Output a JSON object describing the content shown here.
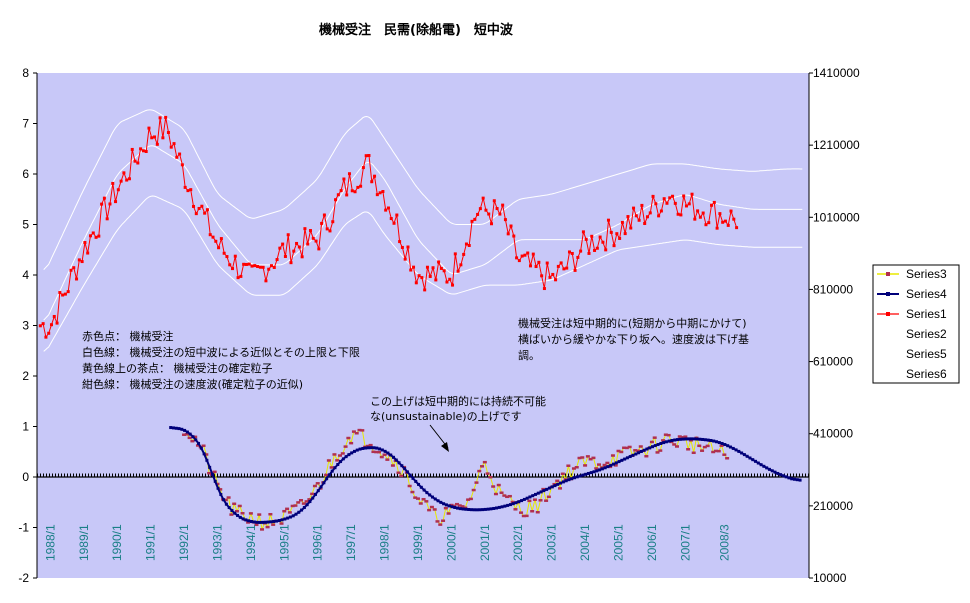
{
  "chart_data": {
    "type": "line",
    "title": "機械受注　民需(除船電)　短中波",
    "y_left": {
      "min": -2,
      "max": 8,
      "ticks": [
        "8",
        "7",
        "6",
        "5",
        "4",
        "3",
        "2",
        "1",
        "0",
        "-1",
        "-2"
      ]
    },
    "y_right": {
      "min": 10000,
      "max": 1410000,
      "ticks": [
        "1410000",
        "1210000",
        "1010000",
        "810000",
        "610000",
        "410000",
        "210000",
        "10000"
      ]
    },
    "x_range": [
      1987.6,
      2010.7
    ],
    "x_tick_labels": [
      "1988/1",
      "1989/1",
      "1990/1",
      "1991/1",
      "1992/1",
      "1993/1",
      "1994/1",
      "1995/1",
      "1996/1",
      "1997/1",
      "1998/1",
      "1999/1",
      "2000/1",
      "2001/1",
      "2002/1",
      "2003/1",
      "2004/1",
      "2005/1",
      "2006/1",
      "2007/1",
      "2008/3"
    ],
    "grid": false,
    "legend_position": "right",
    "legend": [
      "Series3",
      "Series4",
      "Series1",
      "Series2",
      "Series5",
      "Series6"
    ],
    "colors": {
      "plot_bg": "#c8c8f8",
      "series1": "#ff0000",
      "series1_marker": "#ff0000",
      "series3_line": "#e8e800",
      "series3_marker": "#b03050",
      "series4": "#00007a",
      "envelope": "#ffffff",
      "zero_line": "#000000"
    },
    "notes_left": [
      "赤色点：  機械受注",
      "白色線：  機械受注の短中波による近似とその上限と下限",
      "黄色線上の茶点：  機械受注の確定粒子",
      "紺色線：  機械受注の速度波(確定粒子の近似)"
    ],
    "notes_right": [
      "機械受注は短中期的に(短期から中期にかけて)",
      "横ばいから緩やかな下り坂へ。速度波は下げ基",
      "調。"
    ],
    "arrow_note": [
      "この上げは短中期的には持続不可能",
      "な(unsustainable)の上げです"
    ],
    "series": [
      {
        "name": "Series1",
        "axis": "left",
        "values_note": "monthly orders, trend approx",
        "x": [
          1988.0,
          1989.0,
          1990.0,
          1991.0,
          1991.5,
          1992.0,
          1993.0,
          1994.0,
          1995.0,
          1996.0,
          1996.8,
          1997.5,
          1998.0,
          1999.0,
          2000.0,
          2000.8,
          2001.5,
          2002.0,
          2003.0,
          2003.5,
          2004.0,
          2005.0,
          2006.0,
          2006.5,
          2007.0,
          2008.0,
          2008.5
        ],
        "y": [
          3.0,
          4.5,
          5.7,
          6.8,
          6.9,
          6.0,
          4.6,
          3.9,
          4.5,
          4.7,
          5.7,
          6.2,
          5.6,
          4.0,
          4.0,
          5.3,
          5.2,
          4.3,
          3.9,
          4.2,
          4.6,
          4.9,
          5.3,
          5.6,
          5.4,
          5.2,
          5.1
        ]
      },
      {
        "name": "Series2",
        "axis": "left",
        "role": "approximation",
        "x": [
          1987.8,
          1989.0,
          1990.0,
          1991.0,
          1992.0,
          1993.0,
          1994.0,
          1995.0,
          1996.0,
          1996.8,
          1997.5,
          1998.0,
          1999.0,
          2000.0,
          2001.0,
          2002.0,
          2003.0,
          2004.0,
          2005.0,
          2006.0,
          2007.0,
          2008.0,
          2009.0,
          2010.0,
          2010.5
        ],
        "y": [
          3.0,
          4.7,
          6.0,
          6.6,
          6.2,
          5.0,
          4.2,
          4.2,
          4.8,
          5.7,
          6.3,
          5.9,
          4.7,
          4.0,
          4.2,
          4.7,
          4.7,
          4.7,
          5.0,
          5.4,
          5.6,
          5.4,
          5.3,
          5.3,
          5.3
        ]
      },
      {
        "name": "Series5",
        "axis": "left",
        "role": "upper band",
        "x": [
          1987.8,
          1989.0,
          1990.0,
          1991.0,
          1992.0,
          1993.0,
          1994.0,
          1995.0,
          1996.0,
          1996.8,
          1997.5,
          1998.0,
          1999.0,
          2000.0,
          2001.0,
          2002.0,
          2003.0,
          2004.0,
          2005.0,
          2006.0,
          2007.0,
          2008.0,
          2009.0,
          2010.0,
          2010.5
        ],
        "y": [
          4.0,
          5.7,
          7.0,
          7.3,
          6.9,
          5.6,
          5.1,
          5.3,
          5.9,
          6.8,
          7.2,
          6.7,
          5.7,
          5.0,
          5.0,
          5.5,
          5.6,
          5.8,
          6.0,
          6.2,
          6.2,
          6.1,
          6.05,
          6.1,
          6.1
        ]
      },
      {
        "name": "Series6",
        "axis": "left",
        "role": "lower band",
        "x": [
          1987.8,
          1989.0,
          1990.0,
          1991.0,
          1992.0,
          1993.0,
          1994.0,
          1995.0,
          1996.0,
          1996.8,
          1997.5,
          1998.0,
          1999.0,
          2000.0,
          2001.0,
          2002.0,
          2003.0,
          2004.0,
          2005.0,
          2006.0,
          2007.0,
          2008.0,
          2009.0,
          2010.0,
          2010.5
        ],
        "y": [
          2.4,
          3.8,
          4.9,
          5.6,
          5.3,
          4.2,
          3.6,
          3.6,
          4.2,
          5.0,
          5.3,
          4.8,
          4.0,
          3.6,
          3.8,
          3.8,
          3.9,
          4.2,
          4.5,
          4.6,
          4.7,
          4.6,
          4.55,
          4.55,
          4.55
        ]
      },
      {
        "name": "Series4",
        "axis": "left",
        "role": "velocity wave",
        "x": [
          1991.6,
          1992.2,
          1992.7,
          1993.0,
          1993.5,
          1994.0,
          1994.5,
          1995.0,
          1995.5,
          1996.0,
          1996.5,
          1997.0,
          1997.5,
          1998.0,
          1998.5,
          1999.0,
          1999.5,
          2000.0,
          2000.5,
          2001.0,
          2001.5,
          2002.0,
          2002.5,
          2003.0,
          2003.5,
          2004.0,
          2004.5,
          2005.0,
          2005.5,
          2006.0,
          2006.5,
          2007.0,
          2007.5,
          2008.0,
          2008.5,
          2009.0,
          2009.5,
          2010.0,
          2010.5
        ],
        "y": [
          1.0,
          0.9,
          0.4,
          -0.3,
          -0.75,
          -0.9,
          -0.9,
          -0.85,
          -0.7,
          -0.3,
          0.2,
          0.5,
          0.6,
          0.55,
          0.25,
          -0.15,
          -0.45,
          -0.6,
          -0.65,
          -0.65,
          -0.6,
          -0.5,
          -0.35,
          -0.2,
          -0.05,
          0.05,
          0.15,
          0.3,
          0.45,
          0.6,
          0.72,
          0.76,
          0.75,
          0.7,
          0.55,
          0.35,
          0.15,
          0.0,
          -0.1
        ]
      },
      {
        "name": "Series3",
        "axis": "left",
        "role": "confirmed particles",
        "x": [
          1992.0,
          1992.5,
          1993.0,
          1993.5,
          1994.0,
          1994.5,
          1995.0,
          1995.5,
          1996.0,
          1996.5,
          1997.0,
          1997.5,
          1998.0,
          1998.5,
          1999.0,
          1999.5,
          2000.0,
          2000.5,
          2001.0,
          2001.5,
          2002.0,
          2002.5,
          2003.0,
          2003.5,
          2004.0,
          2004.5,
          2005.0,
          2005.5,
          2006.0,
          2006.5,
          2007.0,
          2007.5,
          2008.0,
          2008.3
        ],
        "y": [
          1.0,
          0.6,
          -0.2,
          -0.7,
          -0.8,
          -0.9,
          -0.8,
          -0.6,
          -0.2,
          0.4,
          0.85,
          0.75,
          0.5,
          0.2,
          -0.4,
          -0.8,
          -0.7,
          -0.5,
          0.3,
          -0.4,
          -0.6,
          -0.6,
          -0.2,
          0.1,
          0.3,
          0.3,
          0.4,
          0.5,
          0.6,
          0.75,
          0.7,
          0.6,
          0.5,
          0.4
        ]
      }
    ]
  }
}
